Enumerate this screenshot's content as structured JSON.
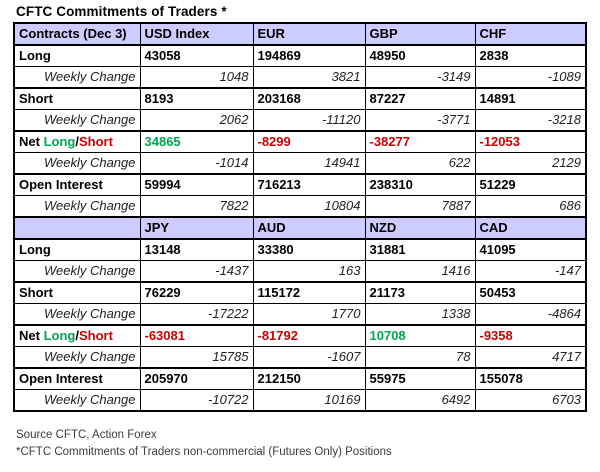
{
  "title": "CFTC Commitments of Traders *",
  "colors": {
    "header_bg": "#ccccff",
    "positive": "#00a651",
    "negative": "#cc0000",
    "border": "#000000"
  },
  "table": {
    "sections": [
      {
        "header": [
          "Contracts (Dec 3)",
          "USD Index",
          "EUR",
          "GBP",
          "CHF"
        ],
        "rows": [
          {
            "label": "Long",
            "type": "value",
            "values": [
              "43058",
              "194869",
              "48950",
              "2838"
            ]
          },
          {
            "label": "Weekly Change",
            "type": "change",
            "values": [
              "1048",
              "3821",
              "-3149",
              "-1089"
            ]
          },
          {
            "label": "Short",
            "type": "value",
            "values": [
              "8193",
              "203168",
              "87227",
              "14891"
            ]
          },
          {
            "label": "Weekly Change",
            "type": "change",
            "values": [
              "2062",
              "-11120",
              "-3771",
              "-3218"
            ]
          },
          {
            "label": "Net Long/Short",
            "type": "net",
            "label_parts": [
              {
                "text": "Net ",
                "color": "default"
              },
              {
                "text": "Long",
                "color": "positive"
              },
              {
                "text": "/",
                "color": "default"
              },
              {
                "text": "Short",
                "color": "negative"
              }
            ],
            "values": [
              "34865",
              "-8299",
              "-38277",
              "-12053"
            ]
          },
          {
            "label": "Weekly Change",
            "type": "change",
            "values": [
              "-1014",
              "14941",
              "622",
              "2129"
            ]
          },
          {
            "label": "Open Interest",
            "type": "value",
            "values": [
              "59994",
              "716213",
              "238310",
              "51229"
            ]
          },
          {
            "label": "Weekly Change",
            "type": "change",
            "values": [
              "7822",
              "10804",
              "7887",
              "686"
            ]
          }
        ]
      },
      {
        "header": [
          "",
          "JPY",
          "AUD",
          "NZD",
          "CAD"
        ],
        "rows": [
          {
            "label": "Long",
            "type": "value",
            "values": [
              "13148",
              "33380",
              "31881",
              "41095"
            ]
          },
          {
            "label": "Weekly Change",
            "type": "change",
            "values": [
              "-1437",
              "163",
              "1416",
              "-147"
            ]
          },
          {
            "label": "Short",
            "type": "value",
            "values": [
              "76229",
              "115172",
              "21173",
              "50453"
            ]
          },
          {
            "label": "Weekly Change",
            "type": "change",
            "values": [
              "-17222",
              "1770",
              "1338",
              "-4864"
            ]
          },
          {
            "label": "Net Long/Short",
            "type": "net",
            "label_parts": [
              {
                "text": "Net ",
                "color": "default"
              },
              {
                "text": "Long",
                "color": "positive"
              },
              {
                "text": "/",
                "color": "default"
              },
              {
                "text": "Short",
                "color": "negative"
              }
            ],
            "values": [
              "-63081",
              "-81792",
              "10708",
              "-9358"
            ]
          },
          {
            "label": "Weekly Change",
            "type": "change",
            "values": [
              "15785",
              "-1607",
              "78",
              "4717"
            ]
          },
          {
            "label": "Open Interest",
            "type": "value",
            "values": [
              "205970",
              "212150",
              "55975",
              "155078"
            ]
          },
          {
            "label": "Weekly Change",
            "type": "change",
            "values": [
              "-10722",
              "10169",
              "6492",
              "6703"
            ]
          }
        ]
      }
    ]
  },
  "footer": {
    "source": "Source CFTC, Action Forex",
    "note": "*CFTC Commitments of Traders non-commercial (Futures Only) Positions"
  }
}
